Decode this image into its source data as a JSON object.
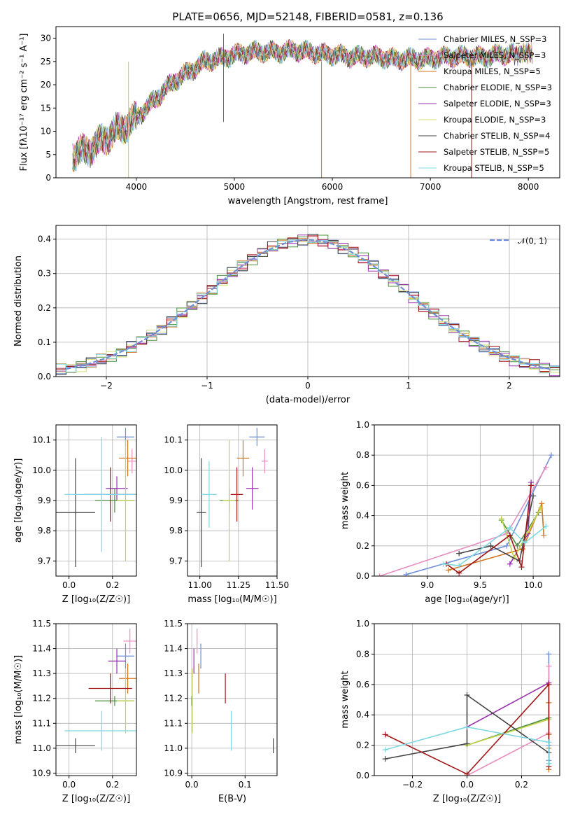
{
  "chart_data": [
    {
      "id": "spectrum",
      "type": "line",
      "title": "PLATE=0656, MJD=52148, FIBERID=0581, z=0.136",
      "xlabel": "wavelength [Angstrom, rest frame]",
      "ylabel": "Flux [fλ10⁻¹⁷ erg cm⁻² s⁻¹ A⁻¹]",
      "xlim": [
        3180,
        8320
      ],
      "ylim": [
        0,
        32.5
      ],
      "xticks": [
        4000,
        5000,
        6000,
        7000,
        8000
      ],
      "yticks": [
        0,
        5,
        10,
        15,
        20,
        25,
        30
      ],
      "grid": false,
      "legend_position": "right",
      "legend": [
        {
          "label": "Chabrier MILES, N_SSP=3",
          "color": "#6f8fd8"
        },
        {
          "label": "Salpeter MILES, N_SSP=3",
          "color": "#e68fc0"
        },
        {
          "label": "Kroupa MILES, N_SSP=5",
          "color": "#d2741c"
        },
        {
          "label": "Chabrier ELODIE, N_SSP=3",
          "color": "#4a8f3a"
        },
        {
          "label": "Salpeter ELODIE, N_SSP=3",
          "color": "#9a2fb0"
        },
        {
          "label": "Kroupa ELODIE, N_SSP=3",
          "color": "#d8e070"
        },
        {
          "label": "Chabrier STELIB, N_SSP=4",
          "color": "#444444"
        },
        {
          "label": "Salpeter STELIB, N_SSP=5",
          "color": "#a01818"
        },
        {
          "label": "Kroupa STELIB, N_SSP=5",
          "color": "#7fd8e0"
        }
      ],
      "x": [
        3350,
        3500,
        3650,
        3800,
        3950,
        4100,
        4250,
        4400,
        4550,
        4700,
        4850,
        5000,
        5150,
        5300,
        5450,
        5600,
        5750,
        5900,
        6050,
        6200,
        6350,
        6500,
        6650,
        6800,
        6950,
        7100,
        7250,
        7400,
        7550,
        7700,
        7850,
        8050
      ],
      "y": [
        5,
        6,
        8,
        10,
        12,
        15,
        18,
        21,
        23,
        25,
        25.5,
        26.5,
        27,
        27,
        27,
        27.5,
        27,
        26.5,
        26.5,
        26,
        26,
        26,
        25.5,
        25.5,
        25.5,
        26,
        26,
        26,
        26,
        26.5,
        26.5,
        27
      ]
    },
    {
      "id": "residuals",
      "type": "line",
      "xlabel": "(data-model)/error",
      "ylabel": "Normed distribution",
      "xlim": [
        -2.5,
        2.5
      ],
      "ylim": [
        0,
        0.44
      ],
      "xticks": [
        -2,
        -1,
        0,
        1,
        2
      ],
      "yticks": [
        0.0,
        0.1,
        0.2,
        0.3,
        0.4
      ],
      "grid": true,
      "legend_position": "top-right",
      "legend": [
        {
          "label": "𝒩(0, 1)",
          "color": "#6f8fd8"
        }
      ],
      "x": [
        -2.4,
        -2.2,
        -2.0,
        -1.8,
        -1.6,
        -1.4,
        -1.2,
        -1.0,
        -0.8,
        -0.6,
        -0.4,
        -0.2,
        0.0,
        0.2,
        0.4,
        0.6,
        0.8,
        1.0,
        1.2,
        1.4,
        1.6,
        1.8,
        2.0,
        2.2,
        2.4
      ],
      "y": [
        0.022,
        0.035,
        0.054,
        0.079,
        0.111,
        0.15,
        0.194,
        0.242,
        0.29,
        0.333,
        0.368,
        0.391,
        0.399,
        0.391,
        0.368,
        0.333,
        0.29,
        0.242,
        0.194,
        0.15,
        0.111,
        0.079,
        0.054,
        0.035,
        0.022
      ]
    },
    {
      "id": "age-vs-Z",
      "type": "scatter",
      "xlabel": "Z [log₁₀(Z/Z☉)]",
      "ylabel": "age  [log₁₀(age/yr)]",
      "xlim": [
        -0.06,
        0.31
      ],
      "ylim": [
        9.65,
        10.15
      ],
      "xticks": [
        0.0,
        0.2
      ],
      "yticks": [
        9.7,
        9.8,
        9.9,
        10.0,
        10.1
      ],
      "grid": true,
      "series": [
        {
          "color": "#6f8fd8",
          "x": 0.26,
          "y": 10.11,
          "xerr": 0.04,
          "yerr": 0.03
        },
        {
          "color": "#e68fc0",
          "x": 0.29,
          "y": 10.03,
          "xerr": 0.02,
          "yerr": 0.04
        },
        {
          "color": "#d2741c",
          "x": 0.27,
          "y": 10.04,
          "xerr": 0.04,
          "yerr": 0.06
        },
        {
          "color": "#4a8f3a",
          "x": 0.21,
          "y": 9.9,
          "xerr": 0.09,
          "yerr": 0.04
        },
        {
          "color": "#9a2fb0",
          "x": 0.22,
          "y": 9.94,
          "xerr": 0.05,
          "yerr": 0.04
        },
        {
          "color": "#c4d44a",
          "x": 0.26,
          "y": 9.9,
          "xerr": 0.04,
          "yerr": 0.2
        },
        {
          "color": "#444444",
          "x": 0.03,
          "y": 9.86,
          "xerr": 0.09,
          "yerr": 0.18
        },
        {
          "color": "#a01818",
          "x": 0.19,
          "y": 9.92,
          "xerr": 0.12,
          "yerr": 0.09
        },
        {
          "color": "#7fd8e0",
          "x": 0.15,
          "y": 9.92,
          "xerr": 0.17,
          "yerr": 0.19
        }
      ]
    },
    {
      "id": "age-vs-mass",
      "type": "scatter",
      "xlabel": "mass [log₁₀(M/M☉)]",
      "ylabel": "",
      "xlim": [
        10.92,
        11.5
      ],
      "ylim": [
        9.65,
        10.15
      ],
      "xticks": [
        11.0,
        11.25,
        11.5
      ],
      "yticks": [
        9.7,
        9.8,
        9.9,
        10.0,
        10.1
      ],
      "grid": true,
      "series": [
        {
          "color": "#6f8fd8",
          "x": 11.37,
          "y": 10.11,
          "xerr": 0.05,
          "yerr": 0.03
        },
        {
          "color": "#e68fc0",
          "x": 11.42,
          "y": 10.03,
          "xerr": 0.02,
          "yerr": 0.04
        },
        {
          "color": "#d2741c",
          "x": 11.28,
          "y": 10.04,
          "xerr": 0.04,
          "yerr": 0.06
        },
        {
          "color": "#4a8f3a",
          "x": 11.19,
          "y": 9.9,
          "xerr": 0.06,
          "yerr": 0.04
        },
        {
          "color": "#9a2fb0",
          "x": 11.34,
          "y": 9.94,
          "xerr": 0.04,
          "yerr": 0.07
        },
        {
          "color": "#c4d44a",
          "x": 11.19,
          "y": 9.9,
          "xerr": 0.04,
          "yerr": 0.2
        },
        {
          "color": "#444444",
          "x": 11.01,
          "y": 9.86,
          "xerr": 0.03,
          "yerr": 0.18
        },
        {
          "color": "#a01818",
          "x": 11.24,
          "y": 9.92,
          "xerr": 0.04,
          "yerr": 0.09
        },
        {
          "color": "#7fd8e0",
          "x": 11.06,
          "y": 9.92,
          "xerr": 0.05,
          "yerr": 0.11
        }
      ]
    },
    {
      "id": "mass-weight-vs-age",
      "type": "line",
      "xlabel": "age  [log₁₀(age/yr)]",
      "ylabel": "mass weight",
      "xlim": [
        8.5,
        10.25
      ],
      "ylim": [
        0,
        1.0
      ],
      "xticks": [
        9.0,
        9.5,
        10.0
      ],
      "yticks": [
        0.0,
        0.2,
        0.4,
        0.6,
        0.8,
        1.0
      ],
      "grid": true,
      "series": [
        {
          "color": "#6f8fd8",
          "x": [
            8.8,
            9.75,
            10.17
          ],
          "y": [
            0.01,
            0.2,
            0.8
          ]
        },
        {
          "color": "#e68fc0",
          "x": [
            8.55,
            9.75,
            10.12
          ],
          "y": [
            0.0,
            0.28,
            0.72
          ]
        },
        {
          "color": "#d2741c",
          "x": [
            9.2,
            9.9,
            10.08,
            10.1
          ],
          "y": [
            0.04,
            0.18,
            0.48,
            0.27
          ]
        },
        {
          "color": "#4a8f3a",
          "x": [
            9.7,
            9.85,
            10.05
          ],
          "y": [
            0.37,
            0.2,
            0.42
          ]
        },
        {
          "color": "#9a2fb0",
          "x": [
            9.78,
            9.95,
            9.98
          ],
          "y": [
            0.08,
            0.28,
            0.62
          ]
        },
        {
          "color": "#c4d44a",
          "x": [
            9.7,
            9.82,
            10.07
          ],
          "y": [
            0.38,
            0.12,
            0.45
          ]
        },
        {
          "color": "#444444",
          "x": [
            9.3,
            9.6,
            9.87,
            10.0
          ],
          "y": [
            0.15,
            0.2,
            0.1,
            0.53
          ]
        },
        {
          "color": "#a01818",
          "x": [
            9.18,
            9.3,
            9.78,
            9.89,
            9.98
          ],
          "y": [
            0.08,
            0.02,
            0.27,
            0.06,
            0.6
          ]
        },
        {
          "color": "#7fd8e0",
          "x": [
            9.15,
            9.3,
            9.78,
            9.92,
            10.12
          ],
          "y": [
            0.08,
            0.07,
            0.32,
            0.22,
            0.33
          ]
        }
      ]
    },
    {
      "id": "mass-vs-Z",
      "type": "scatter",
      "xlabel": "Z [log₁₀(Z/Z☉)]",
      "ylabel": "mass [log₁₀(M/M☉)]",
      "xlim": [
        -0.06,
        0.31
      ],
      "ylim": [
        10.89,
        11.5
      ],
      "xticks": [
        0.0,
        0.2
      ],
      "yticks": [
        10.9,
        11.0,
        11.1,
        11.2,
        11.3,
        11.4,
        11.5
      ],
      "grid": true,
      "series": [
        {
          "color": "#6f8fd8",
          "x": 0.26,
          "y": 11.37,
          "xerr": 0.04,
          "yerr": 0.05
        },
        {
          "color": "#e68fc0",
          "x": 0.28,
          "y": 11.43,
          "xerr": 0.03,
          "yerr": 0.05
        },
        {
          "color": "#d2741c",
          "x": 0.27,
          "y": 11.28,
          "xerr": 0.04,
          "yerr": 0.06
        },
        {
          "color": "#4a8f3a",
          "x": 0.21,
          "y": 11.19,
          "xerr": 0.09,
          "yerr": 0.02
        },
        {
          "color": "#9a2fb0",
          "x": 0.22,
          "y": 11.35,
          "xerr": 0.04,
          "yerr": 0.05
        },
        {
          "color": "#c4d44a",
          "x": 0.26,
          "y": 11.19,
          "xerr": 0.04,
          "yerr": 0.13
        },
        {
          "color": "#444444",
          "x": 0.03,
          "y": 11.01,
          "xerr": 0.09,
          "yerr": 0.03
        },
        {
          "color": "#a01818",
          "x": 0.19,
          "y": 11.24,
          "xerr": 0.1,
          "yerr": 0.06
        },
        {
          "color": "#7fd8e0",
          "x": 0.15,
          "y": 11.07,
          "xerr": 0.17,
          "yerr": 0.08
        }
      ]
    },
    {
      "id": "mass-vs-EBV",
      "type": "scatter",
      "xlabel": "E(B-V)",
      "ylabel": "",
      "xlim": [
        -0.008,
        0.16
      ],
      "ylim": [
        10.89,
        11.5
      ],
      "xticks": [
        0.0,
        0.1
      ],
      "yticks": [
        10.9,
        11.0,
        11.1,
        11.2,
        11.3,
        11.4,
        11.5
      ],
      "grid": true,
      "series": [
        {
          "color": "#6f8fd8",
          "x": 0.017,
          "y": 11.37,
          "yerr": 0.05
        },
        {
          "color": "#e68fc0",
          "x": 0.01,
          "y": 11.43,
          "yerr": 0.05
        },
        {
          "color": "#d2741c",
          "x": 0.013,
          "y": 11.28,
          "yerr": 0.06
        },
        {
          "color": "#4a8f3a",
          "x": 0.0,
          "y": 11.19,
          "yerr": 0.02
        },
        {
          "color": "#9a2fb0",
          "x": 0.004,
          "y": 11.35,
          "yerr": 0.05
        },
        {
          "color": "#c4d44a",
          "x": 0.001,
          "y": 11.19,
          "yerr": 0.13
        },
        {
          "color": "#444444",
          "x": 0.153,
          "y": 11.01,
          "yerr": 0.03
        },
        {
          "color": "#a01818",
          "x": 0.063,
          "y": 11.24,
          "yerr": 0.06
        },
        {
          "color": "#7fd8e0",
          "x": 0.074,
          "y": 11.07,
          "yerr": 0.08
        }
      ]
    },
    {
      "id": "mass-weight-vs-Z",
      "type": "line",
      "xlabel": "Z [log₁₀(Z/Z☉)]",
      "ylabel": "mass weight",
      "xlim": [
        -0.34,
        0.34
      ],
      "ylim": [
        0,
        1.0
      ],
      "xticks": [
        -0.2,
        0.0,
        0.2
      ],
      "yticks": [
        0.0,
        0.2,
        0.4,
        0.6,
        0.8,
        1.0
      ],
      "grid": true,
      "series": [
        {
          "color": "#6f8fd8",
          "x": [
            0.3,
            0.3,
            0.3
          ],
          "y": [
            0.8,
            0.2,
            0.1
          ]
        },
        {
          "color": "#e68fc0",
          "x": [
            0.0,
            0.3,
            0.3
          ],
          "y": [
            0.0,
            0.28,
            0.72
          ]
        },
        {
          "color": "#d2741c",
          "x": [
            0.3,
            0.3,
            0.3,
            0.3
          ],
          "y": [
            0.04,
            0.18,
            0.48,
            0.27
          ]
        },
        {
          "color": "#4a8f3a",
          "x": [
            0.0,
            0.3
          ],
          "y": [
            0.2,
            0.38
          ]
        },
        {
          "color": "#9a2fb0",
          "x": [
            0.0,
            0.3
          ],
          "y": [
            0.32,
            0.61
          ]
        },
        {
          "color": "#c4d44a",
          "x": [
            0.0,
            0.3
          ],
          "y": [
            0.2,
            0.37
          ]
        },
        {
          "color": "#444444",
          "x": [
            -0.3,
            0.0,
            0.0,
            0.3
          ],
          "y": [
            0.11,
            0.21,
            0.53,
            0.15
          ]
        },
        {
          "color": "#a01818",
          "x": [
            -0.3,
            0.0,
            0.3,
            0.3
          ],
          "y": [
            0.27,
            0.01,
            0.6,
            0.06
          ]
        },
        {
          "color": "#7fd8e0",
          "x": [
            -0.3,
            0.0,
            0.3,
            0.3
          ],
          "y": [
            0.17,
            0.32,
            0.22,
            0.08
          ]
        }
      ]
    }
  ]
}
